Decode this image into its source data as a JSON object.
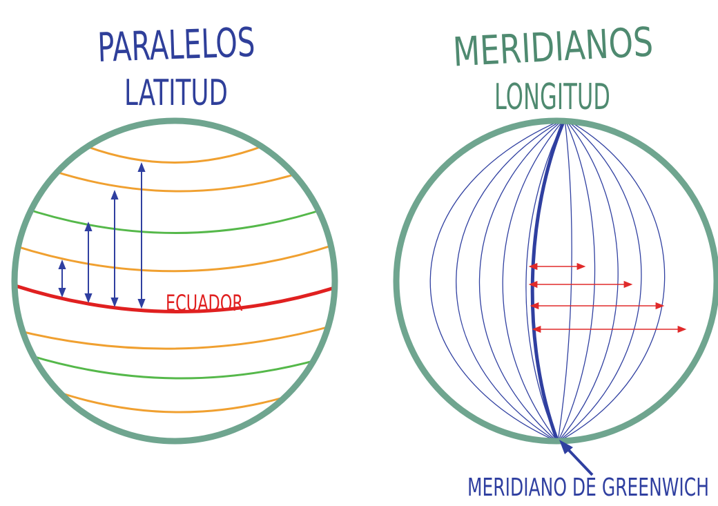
{
  "left_panel": {
    "title": "PARALELOS",
    "subtitle": "LATITUD",
    "equator_label": "ECUADOR"
  },
  "right_panel": {
    "title": "MERIDIANOS",
    "subtitle": "LONGITUD",
    "greenwich_label": "MERIDIANO DE GREENWICH"
  },
  "colors": {
    "globe_outline": "#6fa58f",
    "left_title": "#2f3f9a",
    "right_title": "#4f8a70",
    "parallel_orange": "#f0a030",
    "parallel_green": "#55b84a",
    "equator": "#e02020",
    "meridian_blue": "#2f3fa0",
    "arrow_blue": "#2f3fa0",
    "arrow_red": "#e02a2a"
  }
}
